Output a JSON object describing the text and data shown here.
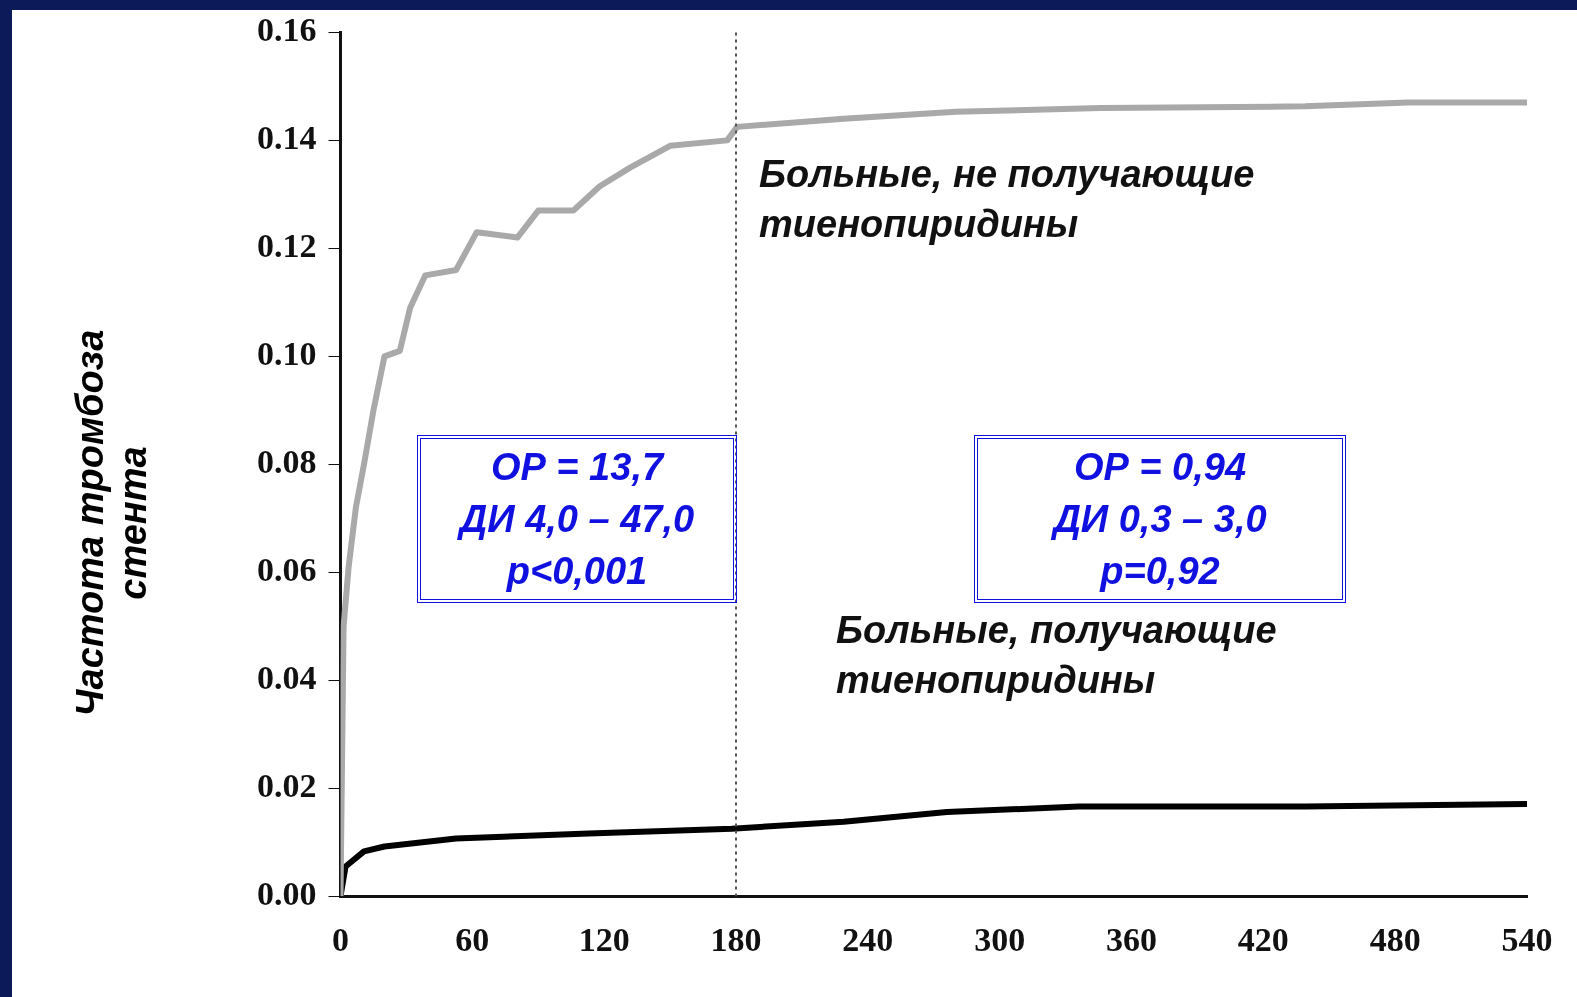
{
  "chart_data": {
    "type": "line",
    "ylabel": "Частота тромбоза стента",
    "xlim": [
      0,
      540
    ],
    "xticks": [
      0,
      60,
      120,
      180,
      240,
      300,
      360,
      420,
      480,
      540
    ],
    "ylim": [
      0,
      0.16
    ],
    "yticks": [
      {
        "value": 0,
        "label": "0.00"
      },
      {
        "value": 0.02,
        "label": "0.02"
      },
      {
        "value": 0.04,
        "label": "0.04"
      },
      {
        "value": 0.06,
        "label": "0.06"
      },
      {
        "value": 0.08,
        "label": "0.08"
      },
      {
        "value": 0.1,
        "label": "0.10"
      },
      {
        "value": 0.12,
        "label": "0.12"
      },
      {
        "value": 0.14,
        "label": "0.14"
      },
      {
        "value": 0.16,
        "label": "0.16"
      }
    ],
    "grid": false,
    "legend": false,
    "marker": "none",
    "line_style": "solid",
    "series": [
      {
        "name": "Больные, не получающие тиенопиридины",
        "color": "#a9a9a9",
        "x": [
          0,
          1.4,
          3.7,
          7,
          10.7,
          15,
          20,
          27,
          31.7,
          38.6,
          52.6,
          62,
          80.5,
          90,
          106,
          118,
          132,
          150,
          176,
          180.5,
          229,
          280,
          346,
          439,
          486,
          540
        ],
        "values": [
          0,
          0.05,
          0.061,
          0.072,
          0.08,
          0.09,
          0.1,
          0.101,
          0.109,
          0.115,
          0.116,
          0.123,
          0.122,
          0.127,
          0.127,
          0.1315,
          0.135,
          0.139,
          0.14,
          0.1425,
          0.144,
          0.1453,
          0.146,
          0.1463,
          0.147,
          0.147
        ]
      },
      {
        "name": "Больные, получающие тиенопиридины",
        "color": "#000000",
        "x": [
          0,
          2.3,
          10.7,
          20,
          52.6,
          113,
          178,
          229,
          276,
          336,
          439,
          540
        ],
        "values": [
          0,
          0.0055,
          0.0083,
          0.0092,
          0.0107,
          0.0116,
          0.0125,
          0.0138,
          0.0156,
          0.0166,
          0.0166,
          0.0171
        ]
      }
    ],
    "ref_lines": [
      {
        "axis": "x",
        "value": 180,
        "color": "#555555",
        "line_style": "dotted"
      }
    ],
    "annotations": [
      "ОР = 13,7\nДИ 4,0 – 47,0\np<0,001",
      "ОР = 0,94\nДИ 0,3 – 3,0\np=0,92"
    ]
  }
}
